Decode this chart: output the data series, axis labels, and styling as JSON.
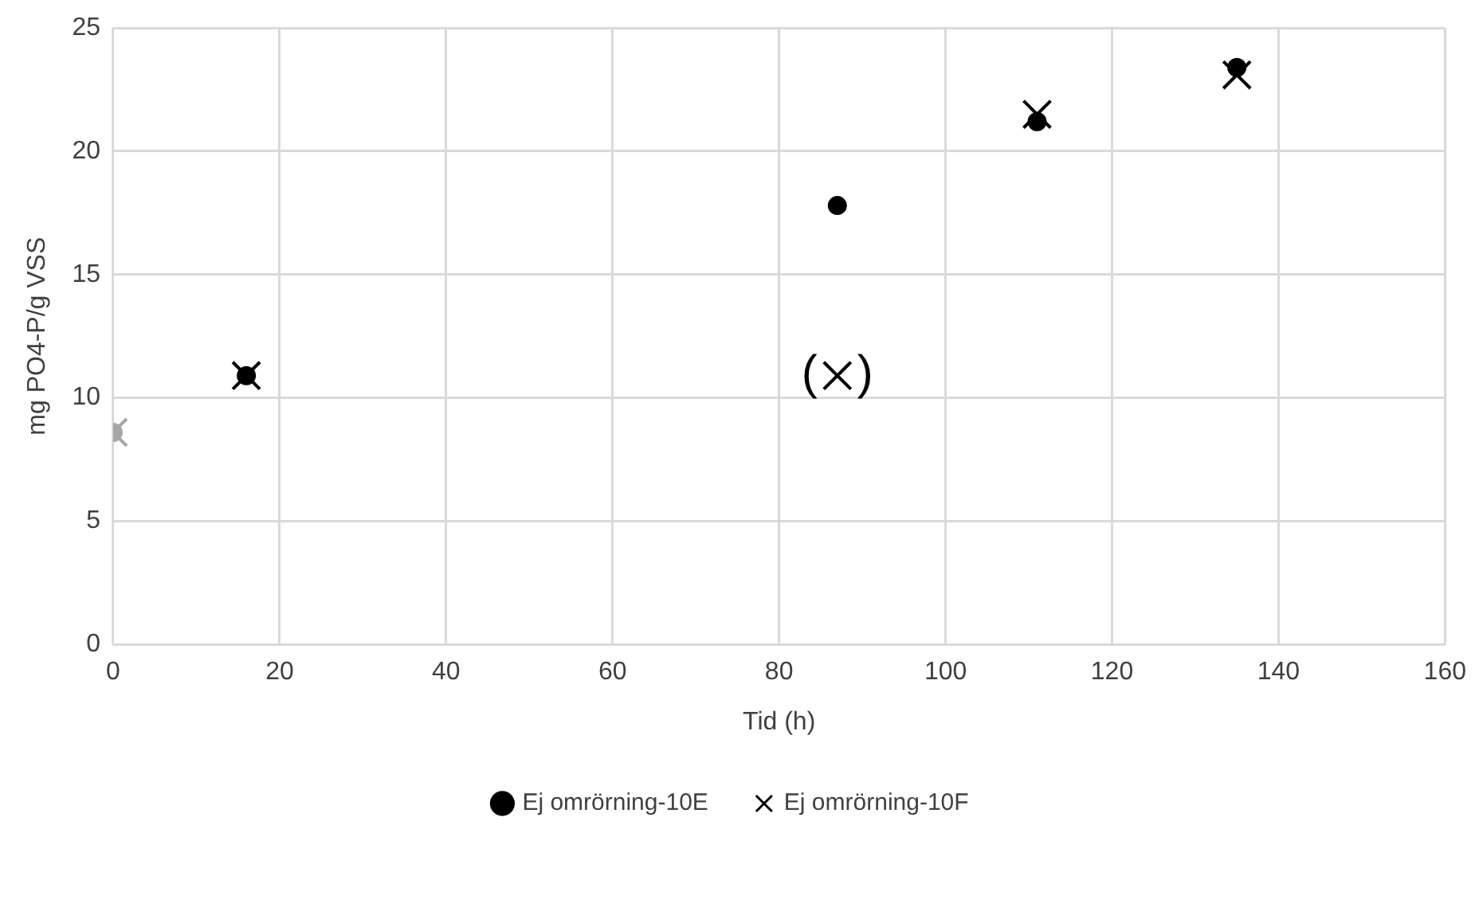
{
  "chart_data": {
    "type": "scatter",
    "xlabel": "Tid (h)",
    "ylabel": "mg PO4-P/g VSS",
    "xlim": [
      0,
      160
    ],
    "xticks": [
      0,
      20,
      40,
      60,
      80,
      100,
      120,
      140,
      160
    ],
    "ylim": [
      0,
      25
    ],
    "yticks": [
      0,
      5,
      10,
      15,
      20,
      25
    ],
    "grid": true,
    "legend": "bottom",
    "series": [
      {
        "name": "Ej omrörning-10E",
        "marker": "circle",
        "color": "#000000",
        "colors": [
          "#a6a6a6",
          "#000000",
          "#000000",
          "#000000",
          "#000000"
        ],
        "x": [
          0,
          16,
          87,
          111,
          135
        ],
        "values": [
          8.6,
          10.9,
          17.8,
          21.2,
          23.4
        ]
      },
      {
        "name": "Ej omrörning-10F",
        "marker": "cross",
        "color": "#000000",
        "colors": [
          "#a6a6a6",
          "#000000",
          "#000000",
          "#000000",
          "#000000"
        ],
        "x": [
          0,
          16,
          87,
          111,
          135
        ],
        "values": [
          8.6,
          10.9,
          10.9,
          21.5,
          23.1
        ]
      }
    ],
    "annotations": [
      {
        "text": "(   )",
        "x": 87,
        "y": 10.9
      }
    ]
  }
}
